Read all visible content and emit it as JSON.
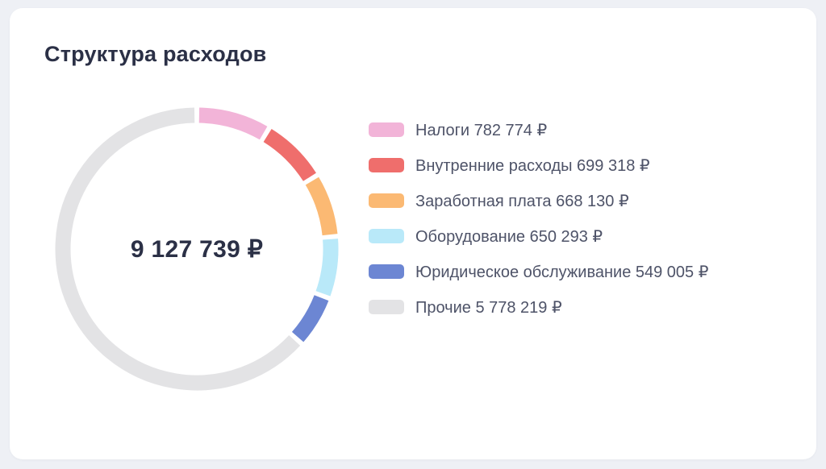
{
  "card": {
    "title": "Структура расходов"
  },
  "chart_data": {
    "type": "pie",
    "subtype": "donut",
    "title": "Структура расходов",
    "center_label": "9 127 739 ₽",
    "total_value": 9127739,
    "currency": "₽",
    "legend_position": "right",
    "start_angle_deg": 0,
    "direction": "clockwise",
    "pad_angle_deg": 2,
    "ring_thickness_px": 19,
    "segments": [
      {
        "label": "Налоги",
        "value": 782774,
        "display": "782 774 ₽",
        "color": "#F2B4D8"
      },
      {
        "label": "Внутренние расходы",
        "value": 699318,
        "display": "699 318 ₽",
        "color": "#EF6E6C"
      },
      {
        "label": "Заработная плата",
        "value": 668130,
        "display": "668 130 ₽",
        "color": "#FBB973"
      },
      {
        "label": "Оборудование",
        "value": 650293,
        "display": "650 293 ₽",
        "color": "#B9E9F9"
      },
      {
        "label": "Юридическое обслуживание",
        "value": 549005,
        "display": "549 005 ₽",
        "color": "#6C86D3"
      },
      {
        "label": "Прочие",
        "value": 5778219,
        "display": "5 778 219 ₽",
        "color": "#E3E3E5"
      }
    ]
  },
  "colors": {
    "page_bg": "#EEF0F5",
    "card_bg": "#FFFFFF",
    "title_text": "#2B3046",
    "center_text": "#2B3046",
    "legend_text": "#4E5368"
  }
}
